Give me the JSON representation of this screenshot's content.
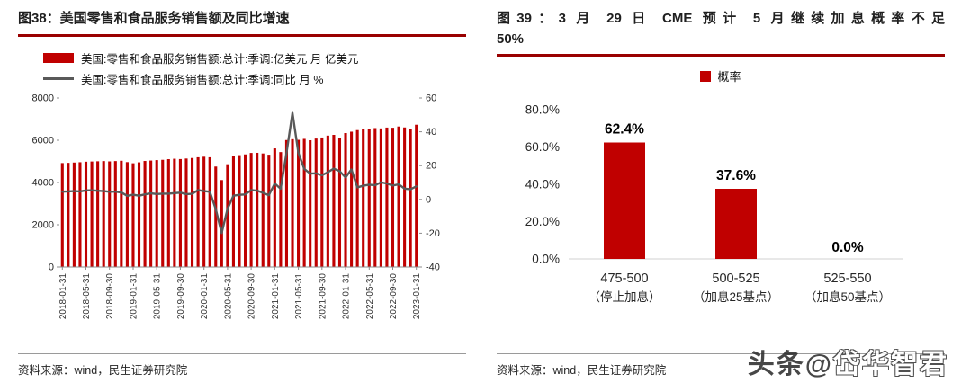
{
  "watermark": {
    "prefix": "头条@",
    "name": "岱华智君"
  },
  "left_panel": {
    "title": "图38：美国零售和食品服务销售额及同比增速",
    "legend": [
      {
        "label": "美国:零售和食品服务销售额:总计:季调:亿美元 月 亿美元"
      },
      {
        "label": "美国:零售和食品服务销售额:总计:季调:同比 月 %"
      }
    ],
    "source": "资料来源：wind，民生证券研究院"
  },
  "right_panel": {
    "title_line1": "图39：3 月 29 日 CME 预计 5 月继续加息概率不足",
    "title_line2": "50%",
    "legend_label": "概率",
    "source": "资料来源：wind，民生证券研究院"
  },
  "chart_data": [
    {
      "type": "bar+line",
      "title": "美国零售和食品服务销售额及同比增速",
      "x": [
        "2018-01-31",
        "2018-02-28",
        "2018-03-31",
        "2018-04-30",
        "2018-05-31",
        "2018-06-30",
        "2018-07-31",
        "2018-08-31",
        "2018-09-30",
        "2018-10-31",
        "2018-11-30",
        "2018-12-31",
        "2019-01-31",
        "2019-02-28",
        "2019-03-31",
        "2019-04-30",
        "2019-05-31",
        "2019-06-30",
        "2019-07-31",
        "2019-08-31",
        "2019-09-30",
        "2019-10-31",
        "2019-11-30",
        "2019-12-31",
        "2020-01-31",
        "2020-02-29",
        "2020-03-31",
        "2020-04-30",
        "2020-05-31",
        "2020-06-30",
        "2020-07-31",
        "2020-08-31",
        "2020-09-30",
        "2020-10-31",
        "2020-11-30",
        "2020-12-31",
        "2021-01-31",
        "2021-02-28",
        "2021-03-31",
        "2021-04-30",
        "2021-05-31",
        "2021-06-30",
        "2021-07-31",
        "2021-08-31",
        "2021-09-30",
        "2021-10-31",
        "2021-11-30",
        "2021-12-31",
        "2022-01-31",
        "2022-02-28",
        "2022-03-31",
        "2022-04-30",
        "2022-05-31",
        "2022-06-30",
        "2022-07-31",
        "2022-08-31",
        "2022-09-30",
        "2022-10-31",
        "2022-11-30",
        "2022-12-31",
        "2023-01-31"
      ],
      "x_tick_labels": [
        "2018-01-31",
        "2018-05-31",
        "2018-09-30",
        "2019-01-31",
        "2019-05-31",
        "2019-09-30",
        "2020-01-31",
        "2020-05-31",
        "2020-09-30",
        "2021-01-31",
        "2021-05-31",
        "2021-09-30",
        "2022-01-31",
        "2022-05-31",
        "2022-09-30",
        "2023-01-31"
      ],
      "tick_step": 4,
      "series": [
        {
          "name": "美国:零售和食品服务销售额:总计:季调:亿美元 月 亿美元",
          "type": "bar",
          "axis": "left",
          "color": "#C00000",
          "values": [
            4920,
            4930,
            4945,
            4960,
            4985,
            4995,
            5005,
            5015,
            5000,
            5015,
            5030,
            4965,
            4910,
            4955,
            5020,
            5040,
            5060,
            5075,
            5105,
            5125,
            5110,
            5135,
            5160,
            5195,
            5220,
            5195,
            4755,
            4115,
            4865,
            5245,
            5295,
            5330,
            5400,
            5405,
            5375,
            5315,
            5615,
            5440,
            6010,
            6050,
            6020,
            6065,
            6000,
            6080,
            6130,
            6220,
            6255,
            6110,
            6340,
            6405,
            6480,
            6540,
            6520,
            6575,
            6560,
            6600,
            6590,
            6650,
            6605,
            6530,
            6735
          ]
        },
        {
          "name": "美国:零售和食品服务销售额:总计:季调:同比 月 %",
          "type": "line",
          "axis": "right",
          "color": "#595959",
          "values": [
            4.6,
            4.7,
            4.9,
            4.7,
            5.3,
            5.4,
            5.1,
            4.9,
            4.5,
            4.6,
            4.1,
            2.1,
            2.8,
            2.2,
            3.0,
            3.6,
            3.2,
            3.4,
            3.4,
            3.7,
            4.0,
            3.1,
            3.3,
            5.5,
            4.9,
            4.5,
            -5.7,
            -19.9,
            -5.6,
            2.2,
            2.7,
            2.9,
            5.5,
            5.2,
            3.9,
            2.5,
            9.4,
            6.3,
            27.7,
            51.2,
            27.6,
            18.0,
            15.3,
            15.4,
            14.3,
            16.1,
            18.2,
            16.7,
            13.0,
            17.7,
            7.1,
            8.1,
            8.7,
            8.4,
            10.1,
            9.4,
            8.2,
            8.9,
            6.4,
            6.0,
            7.7
          ]
        }
      ],
      "left_axis": {
        "min": 0,
        "max": 8000,
        "ticks": [
          0,
          2000,
          4000,
          6000,
          8000
        ]
      },
      "right_axis": {
        "min": -40,
        "max": 60,
        "ticks": [
          -40,
          -20,
          0,
          20,
          40,
          60
        ]
      },
      "grid": false,
      "legend_position": "top-left"
    },
    {
      "type": "bar",
      "title": "3 月 29 日 CME 预计 5 月继续加息概率不足50%",
      "legend": "概率",
      "categories": [
        "475-500",
        "500-525",
        "525-550"
      ],
      "category_sublabels": [
        "（停止加息）",
        "（加息25基点）",
        "（加息50基点）"
      ],
      "values": [
        62.4,
        37.6,
        0.0
      ],
      "value_labels": [
        "62.4%",
        "37.6%",
        "0.0%"
      ],
      "bar_color": "#C00000",
      "y_axis": {
        "min": 0,
        "max": 80,
        "tick_values": [
          0,
          20,
          40,
          60,
          80
        ],
        "tick_labels": [
          "0.0%",
          "20.0%",
          "40.0%",
          "60.0%",
          "80.0%"
        ]
      },
      "grid": false,
      "legend_position": "top"
    }
  ]
}
